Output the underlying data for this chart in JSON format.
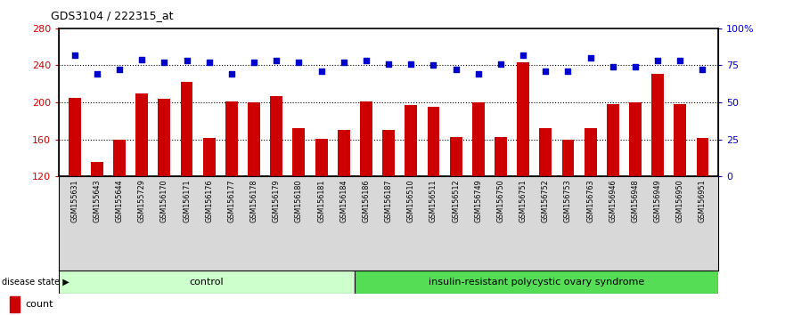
{
  "title": "GDS3104 / 222315_at",
  "samples": [
    "GSM155631",
    "GSM155643",
    "GSM155644",
    "GSM155729",
    "GSM156170",
    "GSM156171",
    "GSM156176",
    "GSM156177",
    "GSM156178",
    "GSM156179",
    "GSM156180",
    "GSM156181",
    "GSM156184",
    "GSM156186",
    "GSM156187",
    "GSM156510",
    "GSM156511",
    "GSM156512",
    "GSM156749",
    "GSM156750",
    "GSM156751",
    "GSM156752",
    "GSM156753",
    "GSM156763",
    "GSM156946",
    "GSM156948",
    "GSM156949",
    "GSM156950",
    "GSM156951"
  ],
  "bar_values": [
    205,
    136,
    160,
    210,
    204,
    222,
    162,
    201,
    200,
    207,
    172,
    161,
    170,
    201,
    170,
    197,
    195,
    163,
    200,
    163,
    243,
    172,
    160,
    172,
    198,
    200,
    231,
    198,
    162
  ],
  "percentile_values": [
    82,
    69,
    72,
    79,
    77,
    78,
    77,
    69,
    77,
    78,
    77,
    71,
    77,
    78,
    76,
    76,
    75,
    72,
    69,
    76,
    82,
    71,
    71,
    80,
    74,
    74,
    78,
    78,
    72
  ],
  "ctrl_count": 13,
  "group_labels": [
    "control",
    "insulin-resistant polycystic ovary syndrome"
  ],
  "ctrl_color": "#ccffcc",
  "insulin_color": "#55dd55",
  "bar_color": "#CC0000",
  "point_color": "#0000CC",
  "ylim_left": [
    120,
    280
  ],
  "ylim_right": [
    0,
    100
  ],
  "yticks_left": [
    120,
    160,
    200,
    240,
    280
  ],
  "yticks_right": [
    0,
    25,
    50,
    75,
    100
  ],
  "ytick_labels_right": [
    "0",
    "25",
    "50",
    "75",
    "100%"
  ],
  "hlines": [
    160,
    200,
    240
  ],
  "background_color": "#ffffff"
}
